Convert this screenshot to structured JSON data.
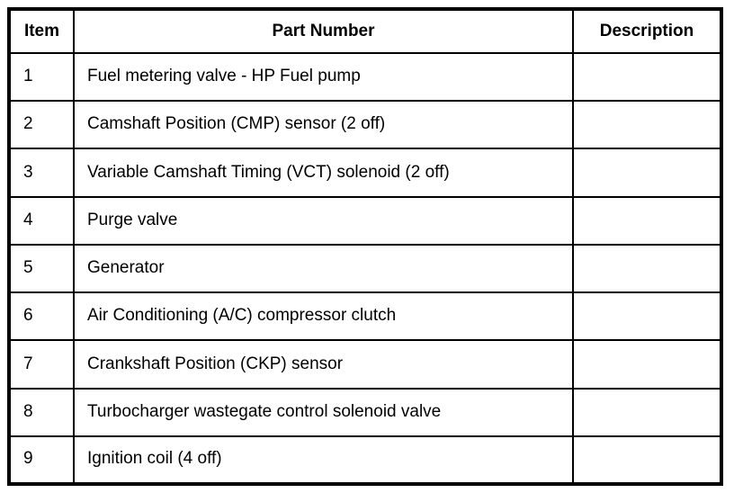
{
  "table": {
    "headers": {
      "item": "Item",
      "part_number": "Part Number",
      "description": "Description"
    },
    "rows": [
      {
        "item": "1",
        "part_number": "Fuel metering valve - HP Fuel pump",
        "description": ""
      },
      {
        "item": "2",
        "part_number": "Camshaft Position (CMP) sensor (2 off)",
        "description": ""
      },
      {
        "item": "3",
        "part_number": "Variable Camshaft Timing (VCT) solenoid (2 off)",
        "description": ""
      },
      {
        "item": "4",
        "part_number": "Purge valve",
        "description": ""
      },
      {
        "item": "5",
        "part_number": "Generator",
        "description": ""
      },
      {
        "item": "6",
        "part_number": "Air Conditioning (A/C) compressor clutch",
        "description": ""
      },
      {
        "item": "7",
        "part_number": "Crankshaft Position (CKP) sensor",
        "description": ""
      },
      {
        "item": "8",
        "part_number": "Turbocharger wastegate control solenoid valve",
        "description": ""
      },
      {
        "item": "9",
        "part_number": "Ignition coil (4 off)",
        "description": ""
      }
    ],
    "colors": {
      "border": "#000000",
      "text": "#000000",
      "background": "#ffffff"
    }
  }
}
